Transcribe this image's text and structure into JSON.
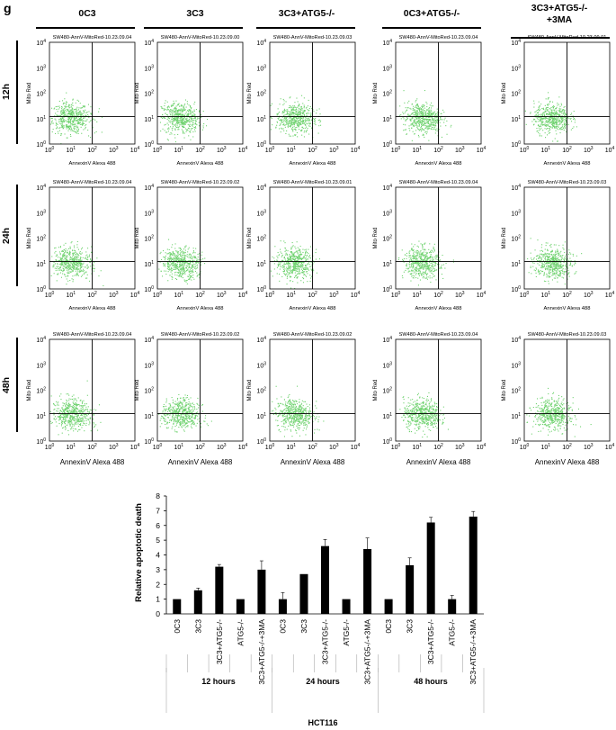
{
  "panel_letter": "g",
  "conditions": [
    "0C3",
    "3C3",
    "3C3+ATG5-/-",
    "0C3+ATG5-/-",
    "3C3+ATG5-/-",
    "+3MA"
  ],
  "timepoints": [
    "12h",
    "24h",
    "48h"
  ],
  "dot_color": "#6fd26f",
  "bar_color": "#000000",
  "facs": {
    "type": "scatter",
    "xlabel": "AnnexinV Alexa 488",
    "ylabel": "Mito Red",
    "xscale": "log",
    "yscale": "log",
    "xlim": [
      1,
      10000
    ],
    "ylim": [
      1,
      10000
    ],
    "ticks": [
      "10",
      "10",
      "10",
      "10",
      "10"
    ],
    "tick_exponents": [
      "0",
      "1",
      "2",
      "3",
      "4"
    ],
    "gate": [
      100,
      12
    ],
    "titles": [
      [
        "SW480-AnnV-MitoRed-10.23.09.04",
        "SW480-AnnV-MitoRed-10.23.09.00",
        "SW480-AnnV-MitoRed-10.23.09.03",
        "SW480-AnnV-MitoRed-10.23.09.04",
        "SW480-AnnV-MitoRed-10.23.09.01"
      ],
      [
        "SW480-AnnV-MitoRed-10.23.09.04",
        "SW480-AnnV-MitoRed-10.23.09.02",
        "SW480-AnnV-MitoRed-10.23.09.01",
        "SW480-AnnV-MitoRed-10.23.09.04",
        "SW480-AnnV-MitoRed-10.23.09.03"
      ],
      [
        "SW480-AnnV-MitoRed-10.23.09.04",
        "SW480-AnnV-MitoRed-10.23.09.02",
        "SW480-AnnV-MitoRed-10.23.09.02",
        "SW480-AnnV-MitoRed-10.23.09.04",
        "SW480-AnnV-MitoRed-10.23.09.03"
      ]
    ]
  },
  "chart_data": {
    "type": "bar",
    "ylabel": "Relative apoptotic death",
    "ylim": [
      0,
      8
    ],
    "yticks": [
      "0",
      "1",
      "2",
      "3",
      "4",
      "5",
      "6",
      "7",
      "8"
    ],
    "categories": [
      "0C3",
      "3C3",
      "3C3+ATG5-/-",
      "ATG5-/-",
      "3C3+ATG5-/-+3MA",
      "0C3",
      "3C3",
      "3C3+ATG5-/-",
      "ATG5-/-",
      "3C3+ATG5-/-+3MA",
      "0C3",
      "3C3",
      "3C3+ATG5-/-",
      "ATG5-/-",
      "3C3+ATG5-/-+3MA"
    ],
    "values": [
      1.0,
      1.6,
      3.2,
      1.0,
      3.0,
      1.0,
      2.7,
      4.6,
      1.0,
      4.4,
      1.0,
      3.3,
      6.2,
      1.0,
      6.6
    ],
    "errors": [
      0,
      0.15,
      0.15,
      0,
      0.6,
      0.45,
      0,
      0.45,
      0,
      0.75,
      0,
      0.5,
      0.35,
      0.25,
      0.35
    ],
    "groups": [
      "12 hours",
      "24 hours",
      "48 hours"
    ],
    "group_title": "HCT116"
  }
}
